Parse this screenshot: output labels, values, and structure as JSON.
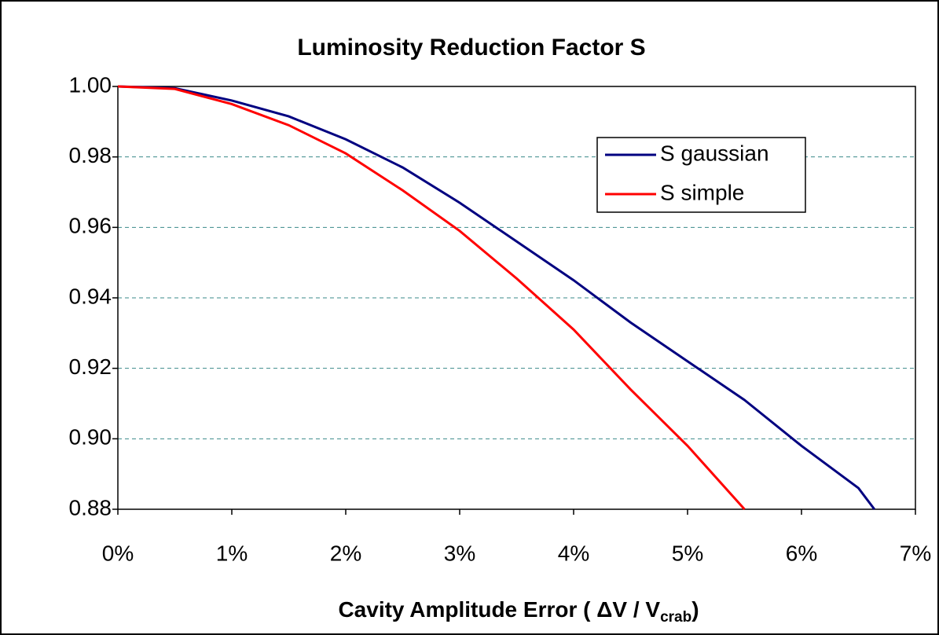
{
  "chart_data": {
    "type": "line",
    "title": "Luminosity Reduction Factor S",
    "xlabel": {
      "text": "Cavity Amplitude Error ( ΔV / V",
      "subscript": "crab",
      "suffix": ")"
    },
    "xlim": [
      0,
      7
    ],
    "xticks": [
      {
        "value": 0,
        "label": "0%"
      },
      {
        "value": 1,
        "label": "1%"
      },
      {
        "value": 2,
        "label": "2%"
      },
      {
        "value": 3,
        "label": "3%"
      },
      {
        "value": 4,
        "label": "4%"
      },
      {
        "value": 5,
        "label": "5%"
      },
      {
        "value": 6,
        "label": "6%"
      },
      {
        "value": 7,
        "label": "7%"
      }
    ],
    "ylim": [
      0.88,
      1.0
    ],
    "yticks": [
      0.88,
      {
        "value": 0.9,
        "label": "0.90"
      },
      0.92,
      0.94,
      0.96,
      0.98,
      {
        "value": 1.0,
        "label": "1.00"
      }
    ],
    "grid": true,
    "legend": "upper right",
    "series": [
      {
        "name": "S gaussian",
        "color": "#000080",
        "x": [
          0,
          0.5,
          1.0,
          1.5,
          2.0,
          2.5,
          3.0,
          3.5,
          4.0,
          4.5,
          5.0,
          5.5,
          6.0,
          6.5,
          6.64
        ],
        "values": [
          1.0,
          0.9995,
          0.996,
          0.9915,
          0.985,
          0.977,
          0.967,
          0.956,
          0.945,
          0.933,
          0.922,
          0.911,
          0.898,
          0.886,
          0.88
        ]
      },
      {
        "name": "S simple",
        "color": "#ff0000",
        "x": [
          0,
          0.5,
          1.0,
          1.5,
          2.0,
          2.5,
          3.0,
          3.5,
          4.0,
          4.5,
          5.0,
          5.5
        ],
        "values": [
          1.0,
          0.9993,
          0.995,
          0.989,
          0.981,
          0.9705,
          0.959,
          0.9455,
          0.931,
          0.914,
          0.898,
          0.88
        ]
      }
    ]
  }
}
